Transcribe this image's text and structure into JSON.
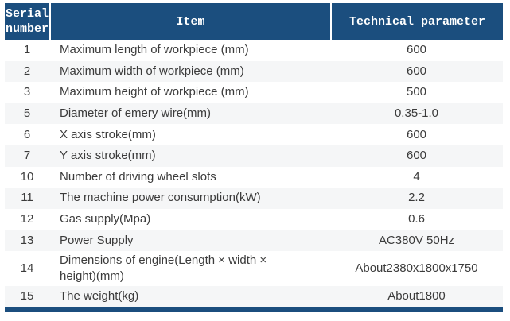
{
  "table": {
    "header": {
      "serial": "Serial number",
      "item": "Item",
      "param": "Technical parameter"
    },
    "rows": [
      {
        "serial": "1",
        "item": "Maximum length of workpiece (mm)",
        "param": "600"
      },
      {
        "serial": "2",
        "item": "Maximum width of workpiece (mm)",
        "param": "600"
      },
      {
        "serial": "3",
        "item": "Maximum height of workpiece (mm)",
        "param": "500"
      },
      {
        "serial": "5",
        "item": "Diameter of emery wire(mm)",
        "param": "0.35-1.0"
      },
      {
        "serial": "6",
        "item": "X axis stroke(mm)",
        "param": "600"
      },
      {
        "serial": "7",
        "item": "Y axis stroke(mm)",
        "param": "600"
      },
      {
        "serial": "10",
        "item": "Number of driving wheel slots",
        "param": "4"
      },
      {
        "serial": "11",
        "item": "The machine power consumption(kW)",
        "param": "2.2"
      },
      {
        "serial": "12",
        "item": "Gas supply(Mpa)",
        "param": "0.6"
      },
      {
        "serial": "13",
        "item": "Power Supply",
        "param": "AC380V 50Hz"
      },
      {
        "serial": "14",
        "item": "Dimensions of engine(Length × width × height)(mm)",
        "param": "About2380x1800x1750"
      },
      {
        "serial": "15",
        "item": "The weight(kg)",
        "param": "About1800"
      }
    ],
    "colors": {
      "header_bg": "#1B4E7E",
      "header_text": "#FFFFFF",
      "stripe_bg": "#F5F6F7",
      "body_text": "#3B3B3B",
      "bottom_border": "#1B4E7E"
    }
  }
}
